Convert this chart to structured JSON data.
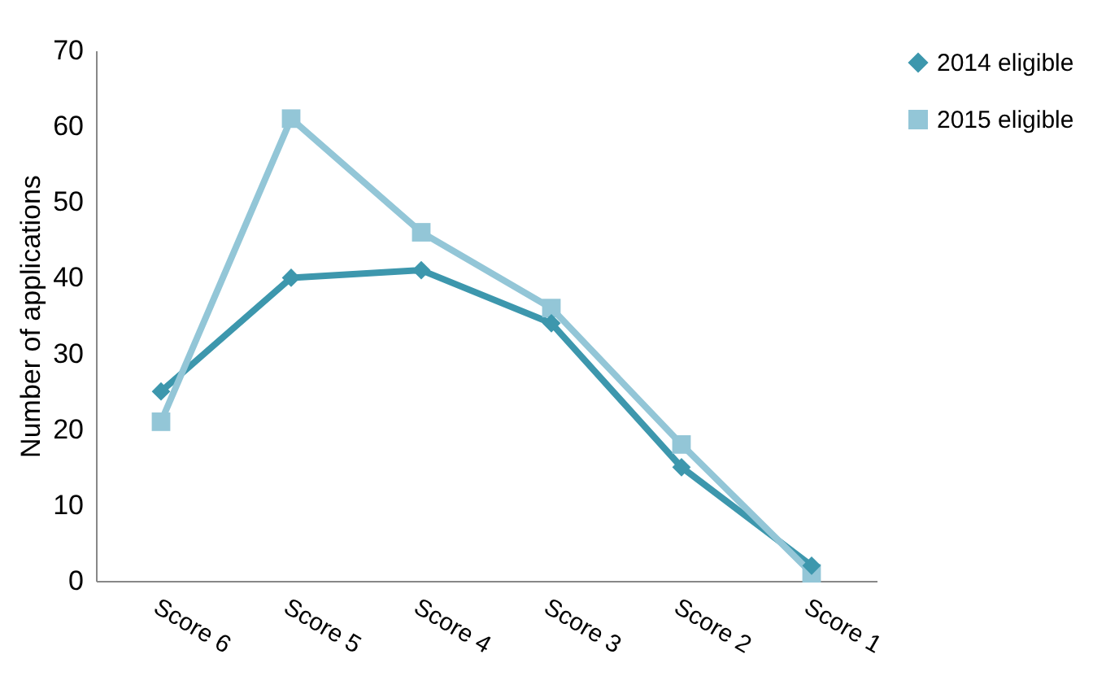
{
  "chart_data": {
    "type": "line",
    "ylabel": "Number of applications",
    "categories": [
      "Score 6",
      "Score 5",
      "Score 4",
      "Score 3",
      "Score 2",
      "Score 1"
    ],
    "series": [
      {
        "name": "2014 eligible",
        "color": "#3d97ad",
        "marker": "diamond",
        "values": [
          25,
          40,
          41,
          34,
          15,
          2
        ]
      },
      {
        "name": "2015 eligible",
        "color": "#93c6d7",
        "marker": "square",
        "values": [
          21,
          61,
          46,
          36,
          18,
          1
        ]
      }
    ],
    "ylim": [
      0,
      70
    ],
    "yticks": [
      0,
      10,
      20,
      30,
      40,
      50,
      60,
      70
    ],
    "grid": false,
    "legend": "right",
    "line_style": "solid"
  }
}
